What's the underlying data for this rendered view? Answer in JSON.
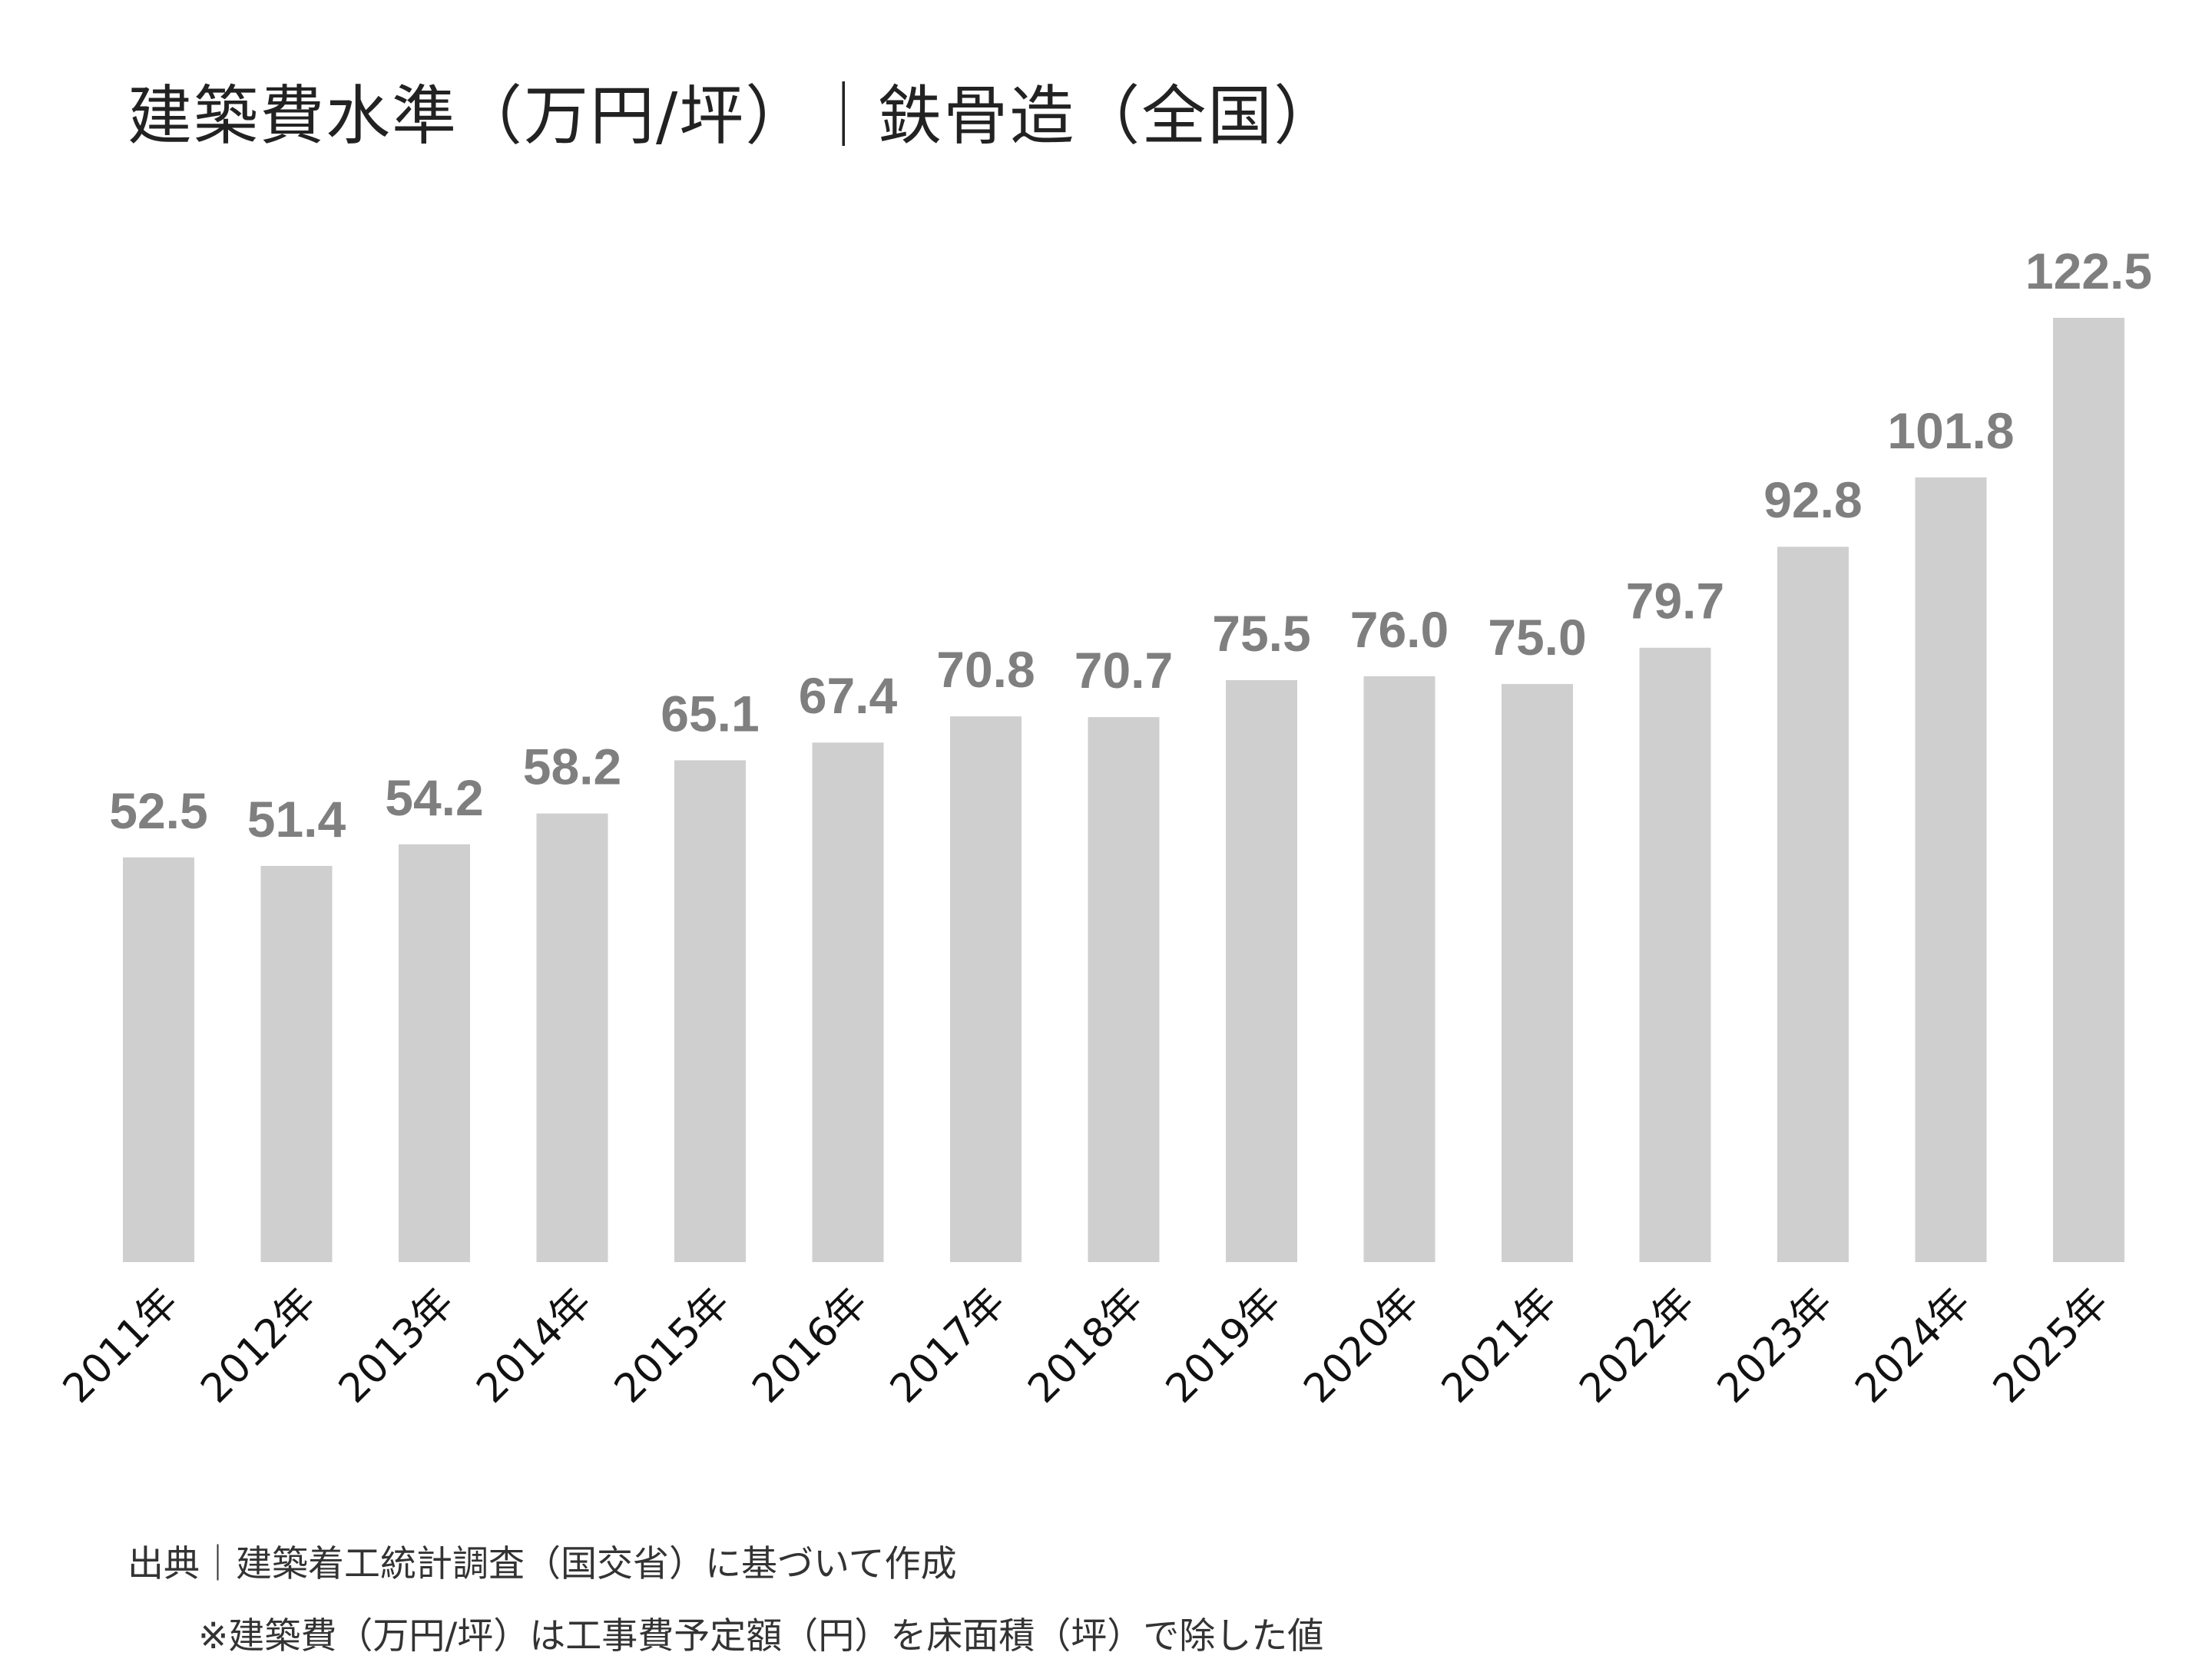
{
  "chart_data": {
    "type": "bar",
    "title": "建築費水準（万円/坪）｜鉄骨造（全国）",
    "categories": [
      "2011年",
      "2012年",
      "2013年",
      "2014年",
      "2015年",
      "2016年",
      "2017年",
      "2018年",
      "2019年",
      "2020年",
      "2021年",
      "2022年",
      "2023年",
      "2024年",
      "2025年"
    ],
    "values": [
      52.5,
      51.4,
      54.2,
      58.2,
      65.1,
      67.4,
      70.8,
      70.7,
      75.5,
      76.0,
      75.0,
      79.7,
      92.8,
      101.8,
      122.5
    ],
    "value_labels": [
      "52.5",
      "51.4",
      "54.2",
      "58.2",
      "65.1",
      "67.4",
      "70.8",
      "70.7",
      "75.5",
      "76.0",
      "75.0",
      "79.7",
      "92.8",
      "101.8",
      "122.5"
    ],
    "xlabel": "",
    "ylabel": "",
    "ylim": [
      0,
      122.5
    ],
    "grid": false,
    "bar_color": "#d0cfcf",
    "label_color": "#7f7f7f"
  },
  "footer": {
    "source": "出典｜建築着工統計調査（国交省）に基づいて作成",
    "note": "※建築費（万円/坪）は工事費予定額（円）を床面積（坪）で除した値"
  }
}
